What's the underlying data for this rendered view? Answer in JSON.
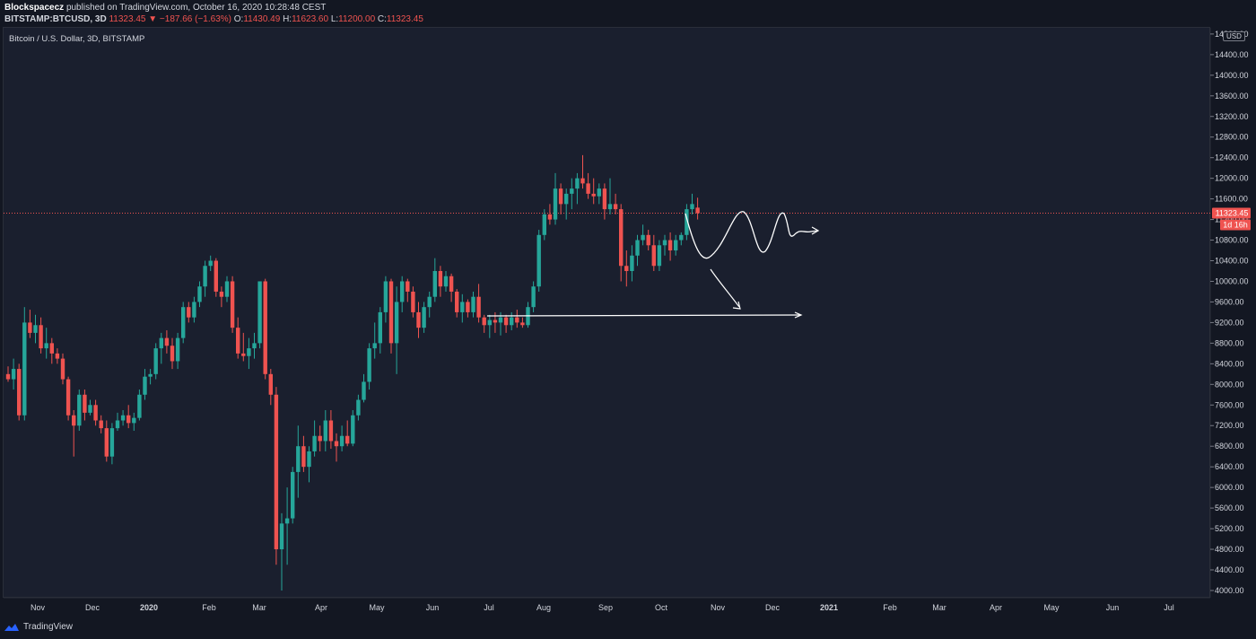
{
  "header": {
    "author": "Blockspacecz",
    "published": "published on TradingView.com, October 16, 2020 10:28:48 CEST",
    "symbol": "BITSTAMP:BTCUSD, 3D",
    "last": "11323.45",
    "change_arrow": "▼",
    "change": "−187.66 (−1.63%)",
    "o_label": "O:",
    "o": "11430.49",
    "h_label": "H:",
    "h": "11623.60",
    "l_label": "L:",
    "l": "11200.00",
    "c_label": "C:",
    "c": "11323.45"
  },
  "pane_title": "Bitcoin / U.S. Dollar, 3D, BITSTAMP",
  "price_axis": {
    "currency_badge": "USD",
    "last_price_label": "11323.45",
    "countdown_label": "1d 16h"
  },
  "footer": {
    "brand": "TradingView",
    "logo_icon": "tradingview-logo-icon"
  },
  "colors": {
    "up": "#26a69a",
    "down": "#ef5350",
    "background": "#1a1f2e",
    "drawing": "#ffffff",
    "last_price_line": "#ef5350"
  },
  "chart_data": {
    "type": "candlestick",
    "title": "Bitcoin / U.S. Dollar, 3D, BITSTAMP",
    "x_ticks": [
      "Nov",
      "Dec",
      "2020",
      "Feb",
      "Mar",
      "Apr",
      "May",
      "Jun",
      "Jul",
      "Aug",
      "Sep",
      "Oct",
      "Nov",
      "Dec",
      "2021",
      "Feb",
      "Mar",
      "Apr",
      "May",
      "Jun",
      "Jul"
    ],
    "y_ticks": [
      4000,
      4400,
      4800,
      5200,
      5600,
      6000,
      6400,
      6800,
      7200,
      7600,
      8000,
      8400,
      8800,
      9200,
      9600,
      10000,
      10400,
      10800,
      11200,
      11600,
      12000,
      12400,
      12800,
      13200,
      13600,
      14000,
      14400,
      14800
    ],
    "ylim": [
      3860,
      14920
    ],
    "last_price": 11323.45,
    "grid": false,
    "candles": [
      {
        "o": 8200,
        "h": 8350,
        "l": 8050,
        "c": 8100
      },
      {
        "o": 8100,
        "h": 8500,
        "l": 7900,
        "c": 8300
      },
      {
        "o": 8300,
        "h": 8400,
        "l": 7300,
        "c": 7400
      },
      {
        "o": 7400,
        "h": 9500,
        "l": 7300,
        "c": 9200
      },
      {
        "o": 9200,
        "h": 9450,
        "l": 8900,
        "c": 9000
      },
      {
        "o": 9000,
        "h": 9350,
        "l": 8800,
        "c": 9150
      },
      {
        "o": 9150,
        "h": 9300,
        "l": 8600,
        "c": 8700
      },
      {
        "o": 8700,
        "h": 9100,
        "l": 8500,
        "c": 8800
      },
      {
        "o": 8800,
        "h": 8900,
        "l": 8400,
        "c": 8600
      },
      {
        "o": 8600,
        "h": 8700,
        "l": 8400,
        "c": 8500
      },
      {
        "o": 8500,
        "h": 8600,
        "l": 8000,
        "c": 8100
      },
      {
        "o": 8100,
        "h": 8150,
        "l": 7300,
        "c": 7400
      },
      {
        "o": 7400,
        "h": 7500,
        "l": 6600,
        "c": 7200
      },
      {
        "o": 7200,
        "h": 7900,
        "l": 7100,
        "c": 7800
      },
      {
        "o": 7800,
        "h": 7900,
        "l": 7300,
        "c": 7450
      },
      {
        "o": 7450,
        "h": 7700,
        "l": 7400,
        "c": 7600
      },
      {
        "o": 7600,
        "h": 7700,
        "l": 7200,
        "c": 7300
      },
      {
        "o": 7300,
        "h": 7400,
        "l": 7050,
        "c": 7150
      },
      {
        "o": 7150,
        "h": 7300,
        "l": 6500,
        "c": 6600
      },
      {
        "o": 6600,
        "h": 7250,
        "l": 6450,
        "c": 7150
      },
      {
        "o": 7150,
        "h": 7450,
        "l": 7100,
        "c": 7300
      },
      {
        "o": 7300,
        "h": 7500,
        "l": 7200,
        "c": 7400
      },
      {
        "o": 7400,
        "h": 7600,
        "l": 7150,
        "c": 7250
      },
      {
        "o": 7250,
        "h": 7450,
        "l": 7100,
        "c": 7350
      },
      {
        "o": 7350,
        "h": 7900,
        "l": 7300,
        "c": 7800
      },
      {
        "o": 7800,
        "h": 8300,
        "l": 7700,
        "c": 8150
      },
      {
        "o": 8150,
        "h": 8300,
        "l": 8000,
        "c": 8200
      },
      {
        "o": 8200,
        "h": 8800,
        "l": 8100,
        "c": 8700
      },
      {
        "o": 8700,
        "h": 9000,
        "l": 8400,
        "c": 8900
      },
      {
        "o": 8900,
        "h": 9050,
        "l": 8600,
        "c": 8750
      },
      {
        "o": 8750,
        "h": 8900,
        "l": 8300,
        "c": 8450
      },
      {
        "o": 8450,
        "h": 9000,
        "l": 8300,
        "c": 8900
      },
      {
        "o": 8900,
        "h": 9600,
        "l": 8800,
        "c": 9500
      },
      {
        "o": 9500,
        "h": 9600,
        "l": 9200,
        "c": 9300
      },
      {
        "o": 9300,
        "h": 9700,
        "l": 9200,
        "c": 9600
      },
      {
        "o": 9600,
        "h": 10000,
        "l": 9500,
        "c": 9900
      },
      {
        "o": 9900,
        "h": 10400,
        "l": 9700,
        "c": 10300
      },
      {
        "o": 10300,
        "h": 10500,
        "l": 10200,
        "c": 10400
      },
      {
        "o": 10400,
        "h": 10450,
        "l": 9700,
        "c": 9800
      },
      {
        "o": 9800,
        "h": 9900,
        "l": 9500,
        "c": 9700
      },
      {
        "o": 9700,
        "h": 10100,
        "l": 9600,
        "c": 10000
      },
      {
        "o": 10000,
        "h": 10100,
        "l": 9000,
        "c": 9100
      },
      {
        "o": 9100,
        "h": 9300,
        "l": 8500,
        "c": 8600
      },
      {
        "o": 8600,
        "h": 9000,
        "l": 8450,
        "c": 8550
      },
      {
        "o": 8550,
        "h": 8900,
        "l": 8300,
        "c": 8700
      },
      {
        "o": 8700,
        "h": 9000,
        "l": 8500,
        "c": 8800
      },
      {
        "o": 8800,
        "h": 10000,
        "l": 8700,
        "c": 10000
      },
      {
        "o": 10000,
        "h": 10050,
        "l": 8100,
        "c": 8200
      },
      {
        "o": 8200,
        "h": 8300,
        "l": 7600,
        "c": 7800
      },
      {
        "o": 7800,
        "h": 7950,
        "l": 4500,
        "c": 4800
      },
      {
        "o": 4800,
        "h": 5500,
        "l": 4000,
        "c": 5300
      },
      {
        "o": 5300,
        "h": 6000,
        "l": 4500,
        "c": 5400
      },
      {
        "o": 5400,
        "h": 6400,
        "l": 5300,
        "c": 6300
      },
      {
        "o": 6300,
        "h": 7200,
        "l": 5800,
        "c": 6800
      },
      {
        "o": 6800,
        "h": 7000,
        "l": 6300,
        "c": 6400
      },
      {
        "o": 6400,
        "h": 6800,
        "l": 6100,
        "c": 6700
      },
      {
        "o": 6700,
        "h": 7300,
        "l": 6600,
        "c": 7000
      },
      {
        "o": 7000,
        "h": 7200,
        "l": 6700,
        "c": 6900
      },
      {
        "o": 6900,
        "h": 7500,
        "l": 6700,
        "c": 7300
      },
      {
        "o": 7300,
        "h": 7500,
        "l": 6750,
        "c": 6900
      },
      {
        "o": 6900,
        "h": 7050,
        "l": 6500,
        "c": 6800
      },
      {
        "o": 6800,
        "h": 7200,
        "l": 6700,
        "c": 7000
      },
      {
        "o": 7000,
        "h": 7300,
        "l": 6800,
        "c": 6850
      },
      {
        "o": 6850,
        "h": 7500,
        "l": 6800,
        "c": 7400
      },
      {
        "o": 7400,
        "h": 7800,
        "l": 7300,
        "c": 7700
      },
      {
        "o": 7700,
        "h": 8200,
        "l": 7650,
        "c": 8050
      },
      {
        "o": 8050,
        "h": 8800,
        "l": 7900,
        "c": 8700
      },
      {
        "o": 8700,
        "h": 9200,
        "l": 8500,
        "c": 8800
      },
      {
        "o": 8800,
        "h": 9500,
        "l": 8600,
        "c": 9400
      },
      {
        "o": 9400,
        "h": 10100,
        "l": 9200,
        "c": 10000
      },
      {
        "o": 10000,
        "h": 10050,
        "l": 8600,
        "c": 8800
      },
      {
        "o": 8800,
        "h": 9900,
        "l": 8200,
        "c": 9600
      },
      {
        "o": 9600,
        "h": 10100,
        "l": 9400,
        "c": 10000
      },
      {
        "o": 10000,
        "h": 10050,
        "l": 9600,
        "c": 9800
      },
      {
        "o": 9800,
        "h": 9900,
        "l": 9300,
        "c": 9400
      },
      {
        "o": 9400,
        "h": 9600,
        "l": 8900,
        "c": 9100
      },
      {
        "o": 9100,
        "h": 9600,
        "l": 9000,
        "c": 9500
      },
      {
        "o": 9500,
        "h": 9800,
        "l": 9300,
        "c": 9700
      },
      {
        "o": 9700,
        "h": 10450,
        "l": 9600,
        "c": 10200
      },
      {
        "o": 10200,
        "h": 10300,
        "l": 9700,
        "c": 9900
      },
      {
        "o": 9900,
        "h": 10200,
        "l": 9800,
        "c": 10100
      },
      {
        "o": 10100,
        "h": 10150,
        "l": 9600,
        "c": 9800
      },
      {
        "o": 9800,
        "h": 9850,
        "l": 9300,
        "c": 9400
      },
      {
        "o": 9400,
        "h": 9750,
        "l": 9200,
        "c": 9600
      },
      {
        "o": 9600,
        "h": 9650,
        "l": 9300,
        "c": 9400
      },
      {
        "o": 9400,
        "h": 9800,
        "l": 9300,
        "c": 9700
      },
      {
        "o": 9700,
        "h": 9950,
        "l": 9200,
        "c": 9300
      },
      {
        "o": 9300,
        "h": 9350,
        "l": 9000,
        "c": 9150
      },
      {
        "o": 9150,
        "h": 9350,
        "l": 8900,
        "c": 9250
      },
      {
        "o": 9250,
        "h": 9400,
        "l": 9000,
        "c": 9200
      },
      {
        "o": 9200,
        "h": 9400,
        "l": 8950,
        "c": 9300
      },
      {
        "o": 9300,
        "h": 9350,
        "l": 9000,
        "c": 9150
      },
      {
        "o": 9150,
        "h": 9400,
        "l": 9050,
        "c": 9300
      },
      {
        "o": 9300,
        "h": 9450,
        "l": 9100,
        "c": 9200
      },
      {
        "o": 9200,
        "h": 9300,
        "l": 9100,
        "c": 9150
      },
      {
        "o": 9150,
        "h": 9600,
        "l": 9100,
        "c": 9500
      },
      {
        "o": 9500,
        "h": 10000,
        "l": 9400,
        "c": 9900
      },
      {
        "o": 9900,
        "h": 11000,
        "l": 9800,
        "c": 10900
      },
      {
        "o": 10900,
        "h": 11400,
        "l": 10800,
        "c": 11300
      },
      {
        "o": 11300,
        "h": 11500,
        "l": 11100,
        "c": 11200
      },
      {
        "o": 11200,
        "h": 12100,
        "l": 11100,
        "c": 11800
      },
      {
        "o": 11800,
        "h": 11900,
        "l": 11300,
        "c": 11500
      },
      {
        "o": 11500,
        "h": 11800,
        "l": 11200,
        "c": 11700
      },
      {
        "o": 11700,
        "h": 12000,
        "l": 11400,
        "c": 11800
      },
      {
        "o": 11800,
        "h": 12100,
        "l": 11500,
        "c": 12000
      },
      {
        "o": 12000,
        "h": 12450,
        "l": 11800,
        "c": 11900
      },
      {
        "o": 11900,
        "h": 12100,
        "l": 11600,
        "c": 11700
      },
      {
        "o": 11700,
        "h": 12000,
        "l": 11500,
        "c": 11650
      },
      {
        "o": 11650,
        "h": 11900,
        "l": 11500,
        "c": 11800
      },
      {
        "o": 11800,
        "h": 11900,
        "l": 11200,
        "c": 11400
      },
      {
        "o": 11400,
        "h": 12000,
        "l": 11300,
        "c": 11500
      },
      {
        "o": 11500,
        "h": 11700,
        "l": 11300,
        "c": 11400
      },
      {
        "o": 11400,
        "h": 11500,
        "l": 10000,
        "c": 10300
      },
      {
        "o": 10300,
        "h": 10600,
        "l": 9900,
        "c": 10200
      },
      {
        "o": 10200,
        "h": 10700,
        "l": 10000,
        "c": 10500
      },
      {
        "o": 10500,
        "h": 10900,
        "l": 10300,
        "c": 10800
      },
      {
        "o": 10800,
        "h": 11100,
        "l": 10700,
        "c": 10900
      },
      {
        "o": 10900,
        "h": 11000,
        "l": 10600,
        "c": 10700
      },
      {
        "o": 10700,
        "h": 10900,
        "l": 10200,
        "c": 10300
      },
      {
        "o": 10300,
        "h": 10800,
        "l": 10200,
        "c": 10700
      },
      {
        "o": 10700,
        "h": 10900,
        "l": 10500,
        "c": 10800
      },
      {
        "o": 10800,
        "h": 10950,
        "l": 10400,
        "c": 10600
      },
      {
        "o": 10600,
        "h": 10900,
        "l": 10500,
        "c": 10800
      },
      {
        "o": 10800,
        "h": 10950,
        "l": 10700,
        "c": 10900
      },
      {
        "o": 10900,
        "h": 11500,
        "l": 10800,
        "c": 11400
      },
      {
        "o": 11400,
        "h": 11700,
        "l": 11300,
        "c": 11500
      },
      {
        "o": 11430.49,
        "h": 11623.6,
        "l": 11200,
        "c": 11323.45
      }
    ]
  }
}
